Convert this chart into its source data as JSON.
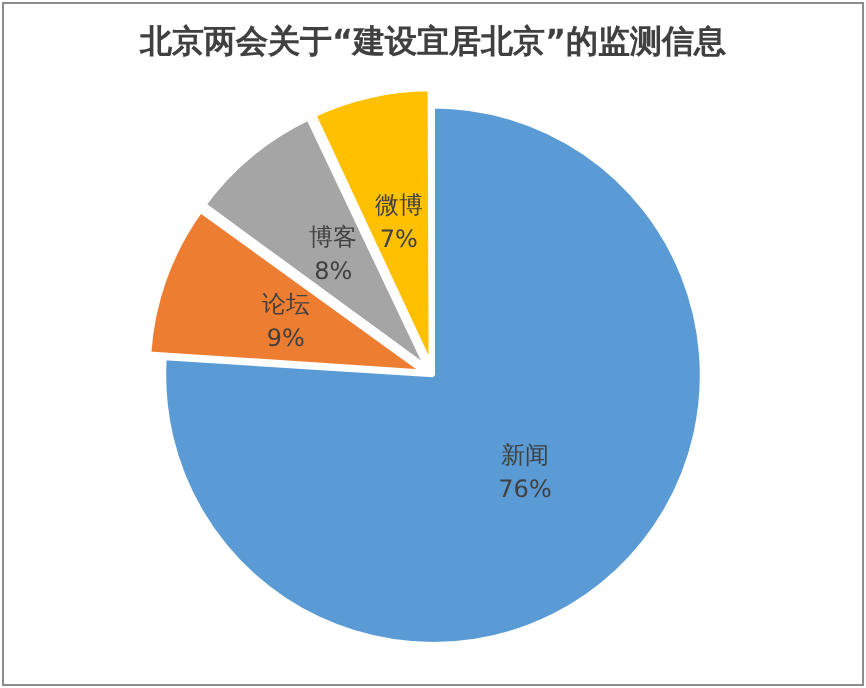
{
  "chart_data": {
    "type": "pie",
    "title": "北京两会关于“建设宜居北京”的监测信息",
    "categories": [
      "新闻",
      "论坛",
      "博客",
      "微博"
    ],
    "values": [
      76,
      9,
      8,
      7
    ],
    "value_labels": [
      "76%",
      "9%",
      "8%",
      "7%"
    ],
    "colors": [
      "#5b9bd5",
      "#ed7d31",
      "#a5a5a5",
      "#ffc000"
    ],
    "legend": false
  }
}
